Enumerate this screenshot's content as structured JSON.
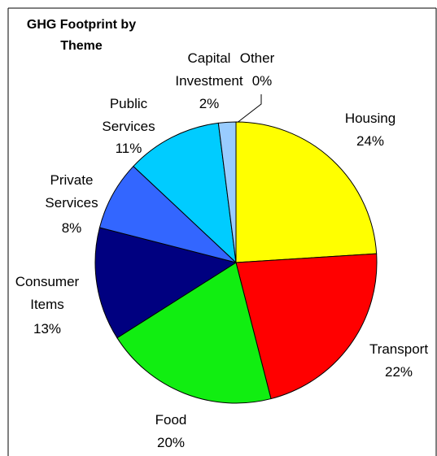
{
  "chart_data": {
    "type": "pie",
    "title": "GHG Footprint by Theme",
    "categories": [
      "Housing",
      "Transport",
      "Food",
      "Consumer Items",
      "Private Services",
      "Public Services",
      "Capital Investment",
      "Other"
    ],
    "values": [
      24,
      22,
      20,
      13,
      8,
      11,
      2,
      0
    ],
    "value_labels": [
      "24%",
      "22%",
      "20%",
      "13%",
      "8%",
      "11%",
      "2%",
      "0%"
    ],
    "colors": [
      "#ffff00",
      "#ff0000",
      "#11ee11",
      "#000080",
      "#3366ff",
      "#00ccff",
      "#99ccff",
      "#333333"
    ]
  }
}
